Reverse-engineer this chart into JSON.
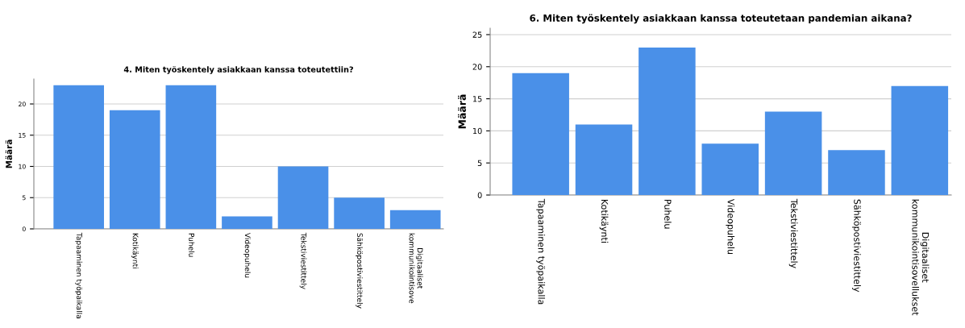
{
  "chart_data": [
    {
      "type": "bar",
      "title": "4. Miten työskentely asiakkaan kanssa toteutettiin?",
      "ylabel": "Määrä",
      "categories": [
        "Tapaaminen työpaikalla",
        "Kotikäynti",
        "Puhelu",
        "Videopuhelu",
        "Tekstiviestittely",
        "Sähköpostiviestittely",
        "Digitaaliset\nkommunikointisove"
      ],
      "values": [
        23,
        19,
        23,
        2,
        10,
        5,
        3
      ],
      "color": "#4a90e8",
      "ylim": [
        0,
        24
      ],
      "yticks": [
        0,
        5,
        10,
        15,
        20
      ],
      "grid": "y"
    },
    {
      "type": "bar",
      "title": "6. Miten työskentely asiakkaan kanssa toteutetaan pandemian aikana?",
      "ylabel": "Määrä",
      "categories": [
        "Tapaaminen työpaikalla",
        "Kotikäynti",
        "Puhelu",
        "Videopuhelu",
        "Tekstiviestittely",
        "Sähköpostiviestittely",
        "Digitaaliset\nkommunikointisovellukset"
      ],
      "values": [
        19,
        11,
        23,
        8,
        13,
        7,
        17
      ],
      "color": "#4a90e8",
      "ylim": [
        0,
        26
      ],
      "yticks": [
        0,
        5,
        10,
        15,
        20,
        25
      ],
      "grid": "y"
    }
  ]
}
